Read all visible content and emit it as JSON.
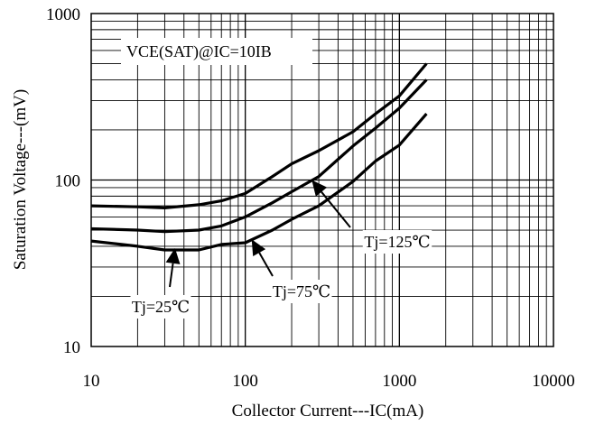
{
  "chart_data": {
    "type": "line",
    "xscale": "log",
    "yscale": "log",
    "xlim": [
      10,
      10000
    ],
    "ylim": [
      10,
      1000
    ],
    "xlabel": "Collector Current---IC(mA)",
    "ylabel": "Saturation Voltage---(mV)",
    "xticks": [
      "10",
      "100",
      "1000",
      "10000"
    ],
    "yticks": [
      "10",
      "100",
      "1000"
    ],
    "grid": true,
    "condition_label": "VCE(SAT)@IC=10IB",
    "series": [
      {
        "name": "Tj=125℃",
        "x": [
          10,
          20,
          30,
          50,
          70,
          100,
          150,
          200,
          300,
          500,
          700,
          1000,
          1500
        ],
        "y": [
          70,
          69,
          68,
          71,
          75,
          83,
          105,
          125,
          150,
          195,
          250,
          320,
          500
        ]
      },
      {
        "name": "Tj=75℃",
        "x": [
          10,
          20,
          30,
          50,
          70,
          100,
          150,
          200,
          300,
          500,
          700,
          1000,
          1500
        ],
        "y": [
          51,
          50,
          49,
          50,
          53,
          60,
          73,
          85,
          105,
          160,
          205,
          270,
          400
        ]
      },
      {
        "name": "Tj=25℃",
        "x": [
          10,
          20,
          30,
          50,
          70,
          100,
          150,
          200,
          300,
          500,
          700,
          1000,
          1500
        ],
        "y": [
          43,
          40,
          38,
          38,
          41,
          42,
          50,
          58,
          70,
          98,
          130,
          162,
          250
        ]
      }
    ],
    "annotations": [
      {
        "text": "Tj=125℃",
        "arrow_tip": [
          270,
          100
        ]
      },
      {
        "text": "Tj=75℃",
        "arrow_tip": [
          110,
          44
        ]
      },
      {
        "text": "Tj=25℃",
        "arrow_tip": [
          35,
          39
        ]
      }
    ]
  }
}
